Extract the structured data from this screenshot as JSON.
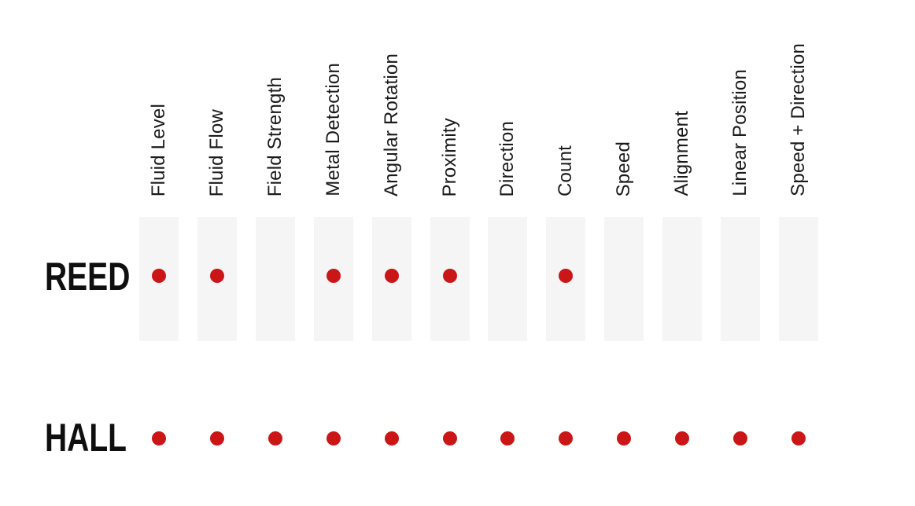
{
  "chart_data": {
    "type": "table",
    "title": "",
    "columns": [
      "Fluid Level",
      "Fluid Flow",
      "Field Strength",
      "Metal Detection",
      "Angular Rotation",
      "Proximity",
      "Direction",
      "Count",
      "Speed",
      "Alignment",
      "Linear Position",
      "Speed + Direction"
    ],
    "rows": [
      {
        "label": "REED",
        "values": [
          1,
          1,
          0,
          1,
          1,
          1,
          0,
          1,
          0,
          0,
          0,
          0
        ]
      },
      {
        "label": "HALL",
        "values": [
          1,
          1,
          1,
          1,
          1,
          1,
          1,
          1,
          1,
          1,
          1,
          1
        ]
      }
    ],
    "marker": "dot",
    "legend_position": "none",
    "notes": "Gray vertical bands appear behind the REED row only; a red dot marks that the sensor type supports the capability."
  },
  "colors": {
    "dot_red": "#cb1618",
    "band_gray": "#f5f5f6",
    "text_black": "#0f0f0f",
    "background": "#ffffff"
  }
}
